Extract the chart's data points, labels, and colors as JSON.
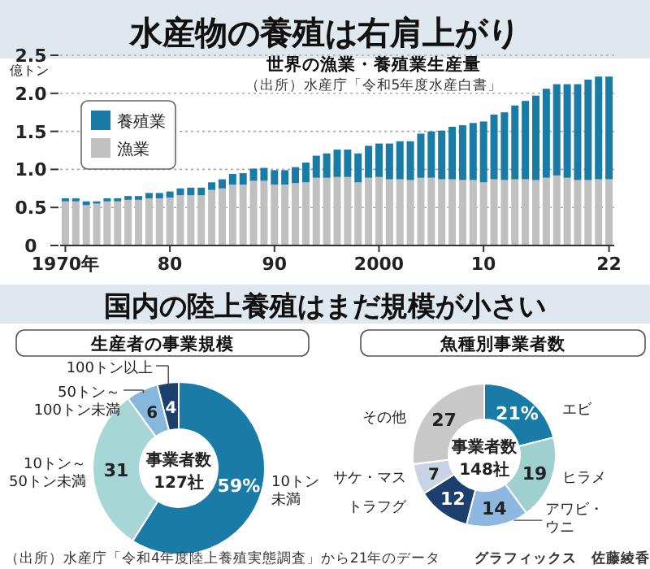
{
  "chart_data": [
    {
      "type": "bar",
      "title": "水産物の養殖は右肩上がり",
      "subtitle": "世界の漁業・養殖業生産量",
      "ylabel": "億トン",
      "annotations": [
        "（出所）水産庁「令和5年度水産白書」"
      ],
      "categories": [
        "1970年",
        null,
        null,
        null,
        null,
        null,
        null,
        null,
        null,
        null,
        "80",
        null,
        null,
        null,
        null,
        null,
        null,
        null,
        null,
        null,
        "90",
        null,
        null,
        null,
        null,
        null,
        null,
        null,
        null,
        null,
        "2000",
        null,
        null,
        null,
        null,
        null,
        null,
        null,
        null,
        null,
        "10",
        null,
        null,
        null,
        null,
        null,
        null,
        null,
        null,
        null,
        null,
        null,
        "22"
      ],
      "stacked": true,
      "legend": "top left",
      "grid": "y",
      "ylim": [
        0,
        2.5
      ],
      "yticks": [
        0,
        0.5,
        {
          "value": 1,
          "label": "1.0"
        },
        1.5,
        {
          "value": 2,
          "label": "2.0"
        },
        2.5
      ],
      "series": [
        {
          "name": "漁業",
          "color": "#c0c0c0",
          "values": [
            0.58,
            0.58,
            0.53,
            0.55,
            0.58,
            0.58,
            0.6,
            0.6,
            0.62,
            0.62,
            0.63,
            0.66,
            0.66,
            0.66,
            0.73,
            0.75,
            0.8,
            0.8,
            0.85,
            0.85,
            0.8,
            0.8,
            0.82,
            0.83,
            0.89,
            0.89,
            0.9,
            0.9,
            0.83,
            0.89,
            0.9,
            0.87,
            0.87,
            0.86,
            0.89,
            0.89,
            0.87,
            0.87,
            0.86,
            0.86,
            0.83,
            0.87,
            0.86,
            0.87,
            0.87,
            0.86,
            0.89,
            0.92,
            0.89,
            0.86,
            0.86,
            0.87,
            0.87
          ]
        },
        {
          "name": "養殖業",
          "color": "#1a7ca6",
          "values": [
            0.04,
            0.04,
            0.05,
            0.03,
            0.04,
            0.04,
            0.05,
            0.05,
            0.07,
            0.07,
            0.08,
            0.09,
            0.1,
            0.1,
            0.1,
            0.12,
            0.14,
            0.15,
            0.16,
            0.17,
            0.19,
            0.19,
            0.21,
            0.26,
            0.29,
            0.32,
            0.36,
            0.36,
            0.38,
            0.42,
            0.44,
            0.47,
            0.5,
            0.51,
            0.58,
            0.61,
            0.64,
            0.69,
            0.72,
            0.75,
            0.8,
            0.85,
            0.89,
            0.97,
            1.03,
            1.11,
            1.17,
            1.2,
            1.23,
            1.26,
            1.32,
            1.35,
            1.35
          ]
        }
      ]
    },
    {
      "type": "donut",
      "title": "生産者の事業規模",
      "annotations": [
        "国内の陸上養殖はまだ規模が小さい",
        "事業者数\n127社",
        "（出所）水産庁「令和4年度陸上養殖実態調査」から21年のデータ"
      ],
      "categories": [
        "10トン未満",
        "10トン～50トン未満",
        "50トン～100トン未満",
        "100トン以上"
      ],
      "values": [
        59,
        31,
        6,
        4
      ],
      "value_labels": [
        "59%",
        "31",
        "6",
        "4"
      ],
      "colors": [
        "#1a7ca6",
        "#a6d6d6",
        "#86b8de",
        "#1d3f6e"
      ]
    },
    {
      "type": "donut",
      "title": "魚種別事業者数",
      "annotations": [
        "事業者数\n148社",
        "グラフィックス　佐藤綾香"
      ],
      "categories": [
        "エビ",
        "ヒラメ",
        "アワビ・ウニ",
        "トラフグ",
        "サケ・マス",
        "その他"
      ],
      "values": [
        21,
        19,
        14,
        12,
        7,
        27
      ],
      "value_labels": [
        "21%",
        "19",
        "14",
        "12",
        "7",
        "27"
      ],
      "colors": [
        "#1a7ca6",
        "#9fd0d0",
        "#8fb8e0",
        "#1d3f6e",
        "#c8d4e6",
        "#c8c8c8"
      ]
    }
  ]
}
